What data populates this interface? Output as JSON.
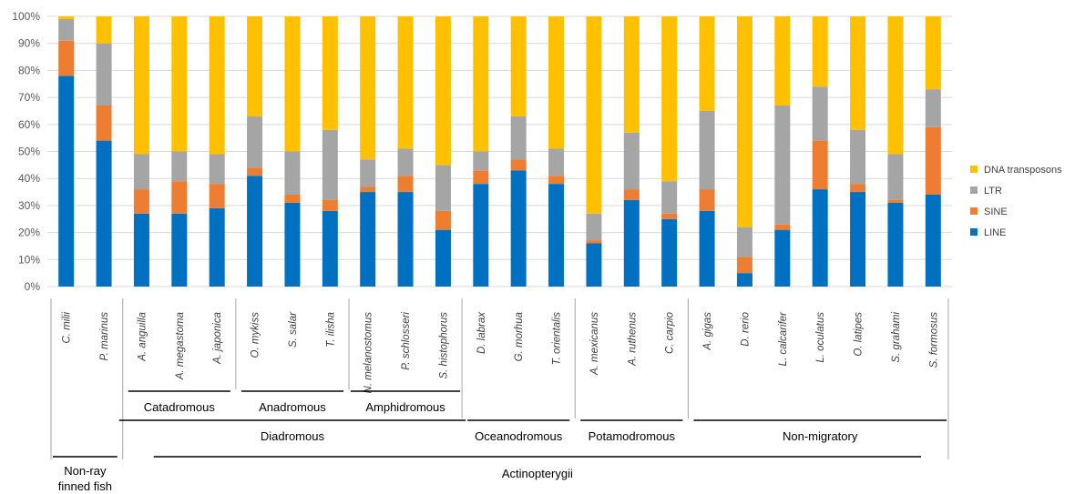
{
  "chart_data": {
    "type": "bar",
    "stacked": true,
    "normalized": true,
    "categories": [
      "C. milii",
      "P. marinus",
      "A. anguilla",
      "A. megastoma",
      "A. japonica",
      "O. mykiss",
      "S. salar",
      "T. ilisha",
      "N. melanostomus",
      "P. schlosseri",
      "S. histophorus",
      "D. labrax",
      "G. morhua",
      "T. orientalis",
      "A. mexicanus",
      "A. ruthenus",
      "C. carpio",
      "A. gigas",
      "D. rerio",
      "L. calcarifer",
      "L. oculatus",
      "O. latipes",
      "S. grahami",
      "S. formosus"
    ],
    "series": [
      {
        "name": "LINE",
        "color": "#0070C0",
        "values": [
          78,
          54,
          27,
          27,
          29,
          41,
          31,
          28,
          35,
          35,
          21,
          38,
          43,
          38,
          16,
          32,
          25,
          28,
          5,
          21,
          36,
          35,
          31,
          34
        ]
      },
      {
        "name": "SINE",
        "color": "#ED7D31",
        "values": [
          13,
          13,
          9,
          12,
          9,
          3,
          3,
          4,
          2,
          6,
          7,
          5,
          4,
          3,
          1,
          4,
          2,
          8,
          6,
          2,
          18,
          3,
          1,
          25
        ]
      },
      {
        "name": "LTR",
        "color": "#A5A5A5",
        "values": [
          8,
          23,
          13,
          11,
          11,
          19,
          16,
          26,
          10,
          10,
          17,
          7,
          16,
          10,
          10,
          21,
          12,
          29,
          11,
          44,
          20,
          20,
          17,
          14
        ]
      },
      {
        "name": "DNA transposons",
        "color": "#FFC000",
        "values": [
          1,
          10,
          51,
          50,
          51,
          37,
          50,
          42,
          53,
          49,
          55,
          50,
          37,
          49,
          73,
          43,
          61,
          35,
          78,
          33,
          26,
          42,
          51,
          27
        ]
      }
    ],
    "y_ticks": [
      "0%",
      "10%",
      "20%",
      "30%",
      "40%",
      "50%",
      "60%",
      "70%",
      "80%",
      "90%",
      "100%"
    ],
    "ylim": [
      0,
      100
    ],
    "grid": true,
    "legend_position": "right",
    "groups": [
      {
        "label": "Non-ray finned fish",
        "start": 0,
        "end": 1
      },
      {
        "label": "Catadromous",
        "start": 2,
        "end": 4
      },
      {
        "label": "Anadromous",
        "start": 5,
        "end": 7
      },
      {
        "label": "Amphidromous",
        "start": 8,
        "end": 10
      },
      {
        "label": "Diadromous",
        "start": 2,
        "end": 10
      },
      {
        "label": "Oceanodromous",
        "start": 11,
        "end": 13
      },
      {
        "label": "Potamodromous",
        "start": 14,
        "end": 16
      },
      {
        "label": "Non-migratory",
        "start": 17,
        "end": 23
      },
      {
        "label": "Actinopterygii",
        "start": 2,
        "end": 23
      }
    ]
  }
}
